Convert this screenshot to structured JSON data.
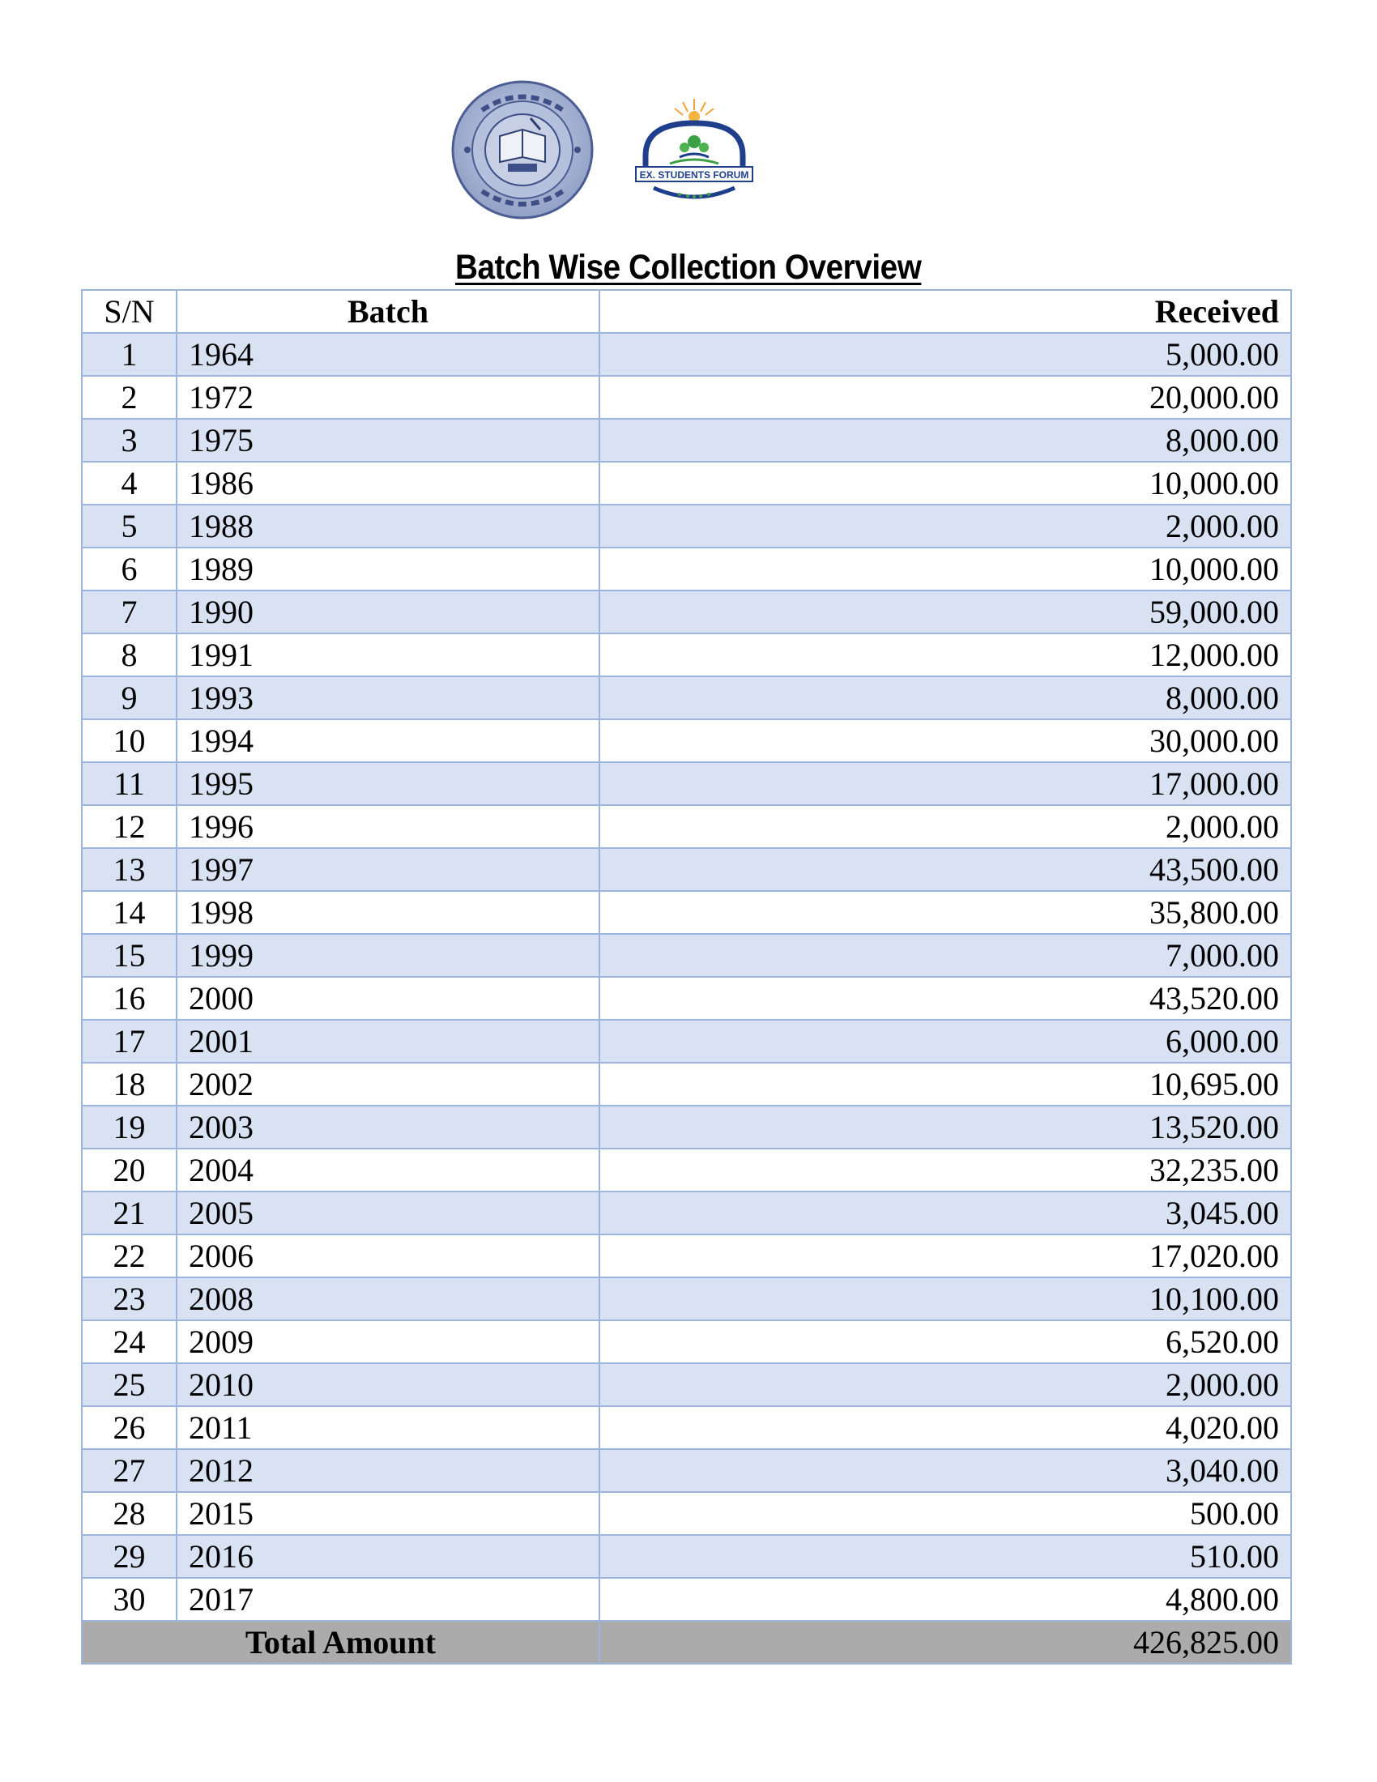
{
  "logos": {
    "seal_name": "school-seal-logo",
    "forum_name": "ex-students-forum-logo",
    "forum_text": "EX. STUDENTS FORUM"
  },
  "title": "Batch Wise Collection Overview",
  "table": {
    "headers": {
      "sn": "S/N",
      "batch": "Batch",
      "received": "Received"
    },
    "rows": [
      {
        "sn": "1",
        "batch": "1964",
        "received": "5,000.00"
      },
      {
        "sn": "2",
        "batch": "1972",
        "received": "20,000.00"
      },
      {
        "sn": "3",
        "batch": "1975",
        "received": "8,000.00"
      },
      {
        "sn": "4",
        "batch": "1986",
        "received": "10,000.00"
      },
      {
        "sn": "5",
        "batch": "1988",
        "received": "2,000.00"
      },
      {
        "sn": "6",
        "batch": "1989",
        "received": "10,000.00"
      },
      {
        "sn": "7",
        "batch": "1990",
        "received": "59,000.00"
      },
      {
        "sn": "8",
        "batch": "1991",
        "received": "12,000.00"
      },
      {
        "sn": "9",
        "batch": "1993",
        "received": "8,000.00"
      },
      {
        "sn": "10",
        "batch": "1994",
        "received": "30,000.00"
      },
      {
        "sn": "11",
        "batch": "1995",
        "received": "17,000.00"
      },
      {
        "sn": "12",
        "batch": "1996",
        "received": "2,000.00"
      },
      {
        "sn": "13",
        "batch": "1997",
        "received": "43,500.00"
      },
      {
        "sn": "14",
        "batch": "1998",
        "received": "35,800.00"
      },
      {
        "sn": "15",
        "batch": "1999",
        "received": "7,000.00"
      },
      {
        "sn": "16",
        "batch": "2000",
        "received": "43,520.00"
      },
      {
        "sn": "17",
        "batch": "2001",
        "received": "6,000.00"
      },
      {
        "sn": "18",
        "batch": "2002",
        "received": "10,695.00"
      },
      {
        "sn": "19",
        "batch": "2003",
        "received": "13,520.00"
      },
      {
        "sn": "20",
        "batch": "2004",
        "received": "32,235.00"
      },
      {
        "sn": "21",
        "batch": "2005",
        "received": "3,045.00"
      },
      {
        "sn": "22",
        "batch": "2006",
        "received": "17,020.00"
      },
      {
        "sn": "23",
        "batch": "2008",
        "received": "10,100.00"
      },
      {
        "sn": "24",
        "batch": "2009",
        "received": "6,520.00"
      },
      {
        "sn": "25",
        "batch": "2010",
        "received": "2,000.00"
      },
      {
        "sn": "26",
        "batch": "2011",
        "received": "4,020.00"
      },
      {
        "sn": "27",
        "batch": "2012",
        "received": "3,040.00"
      },
      {
        "sn": "28",
        "batch": "2015",
        "received": "500.00"
      },
      {
        "sn": "29",
        "batch": "2016",
        "received": "510.00"
      },
      {
        "sn": "30",
        "batch": "2017",
        "received": "4,800.00"
      }
    ],
    "total_label": "Total Amount",
    "total_value": "426,825.00"
  },
  "colors": {
    "shaded_row": "#d9e2f3",
    "border": "#9db5dd",
    "total_row": "#ababab"
  }
}
